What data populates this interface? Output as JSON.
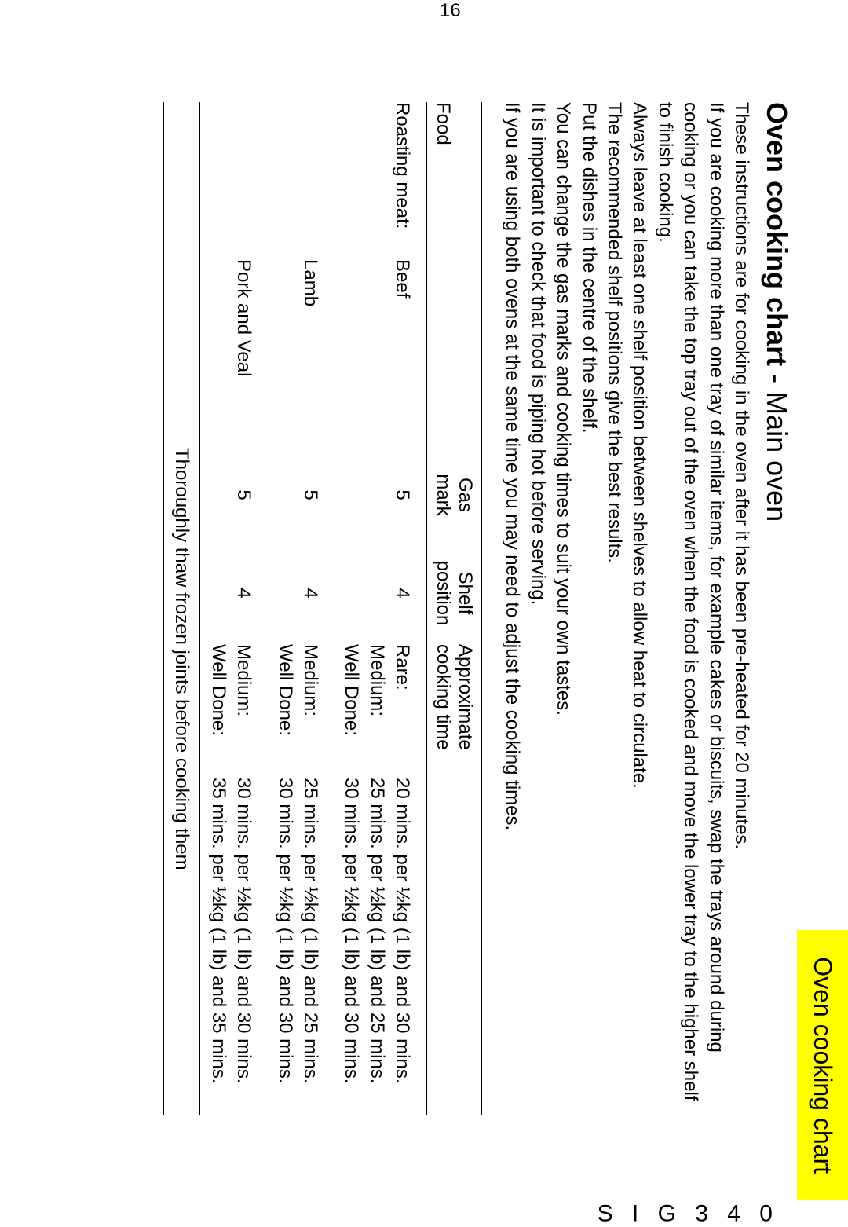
{
  "tab": "Oven cooking chart",
  "model": "S I G   3 4 0",
  "page_number": "16",
  "heading": "Oven cooking chart",
  "heading_sub": " - Main oven",
  "intro": [
    "These instructions are for cooking in the oven after it has been pre-heated for 20 minutes.",
    "If you are cooking more than one tray of similar items, for example cakes or biscuits, swap the trays around during cooking or you can take the top tray out of the oven when the food is cooked and move the lower tray to the higher shelf to finish cooking.",
    "Always leave at least one shelf position between shelves to allow heat to circulate.",
    "The recommended shelf positions give the best results.",
    "Put the dishes in the centre of the shelf.",
    "You can change the gas marks and cooking times to suit your own tastes.",
    "It is important to check that food is piping hot before serving.",
    "If you are using both ovens at the same time you may need to adjust the cooking times."
  ],
  "columns": {
    "food": "Food",
    "gas1": "Gas",
    "gas2": "mark",
    "shelf1": "Shelf",
    "shelf2": "position",
    "time1": "Approximate",
    "time2": "cooking time"
  },
  "category_label": "Roasting meat:",
  "rows": [
    {
      "item": "Beef",
      "gas": "5",
      "shelf": "4",
      "doneness": [
        "Rare:",
        "Medium:",
        "Well Done:"
      ],
      "time": [
        "20 mins. per ½kg (1 lb) and 30 mins.",
        "25 mins. per ½kg (1 lb) and 25 mins.",
        "30 mins. per ½kg (1 lb) and 30 mins."
      ]
    },
    {
      "item": "Lamb",
      "gas": "5",
      "shelf": "4",
      "doneness": [
        "Medium:",
        "Well Done:"
      ],
      "time": [
        "25 mins. per ½kg (1 lb) and 25 mins.",
        "30 mins. per ½kg (1 lb) and 30 mins."
      ]
    },
    {
      "item": "Pork and Veal",
      "gas": "5",
      "shelf": "4",
      "doneness": [
        "Medium:",
        "Well Done:"
      ],
      "time": [
        "30 mins. per ½kg (1 lb) and 30 mins.",
        "35 mins. per ½kg (1 lb) and 35 mins."
      ]
    }
  ],
  "footer": "Thoroughly thaw frozen joints before cooking them"
}
